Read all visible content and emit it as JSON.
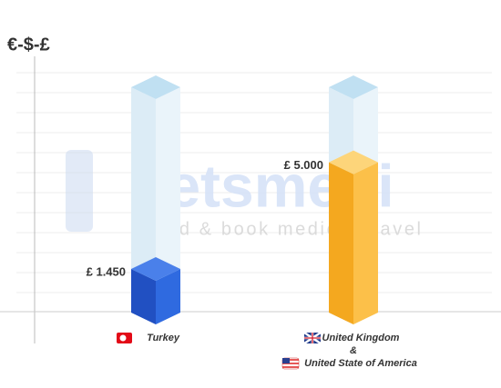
{
  "chart_data": {
    "type": "bar3d",
    "y_label": "€-$-£",
    "categories": [
      [
        "Turkey"
      ],
      [
        "United Kingdom",
        "&",
        "United State of America"
      ]
    ],
    "values": [
      1450,
      5000
    ],
    "value_labels": [
      "£ 1.450",
      "£ 5.000"
    ],
    "colors": [
      [
        "#2150c2",
        "#2f6ae0",
        "#4a80ea"
      ],
      [
        "#f4a81f",
        "#fcc049",
        "#fdd57a"
      ]
    ],
    "ylim": [
      0,
      7500
    ],
    "grid": true,
    "annotations": [
      "letsmedi",
      "find & book medical travel"
    ]
  }
}
